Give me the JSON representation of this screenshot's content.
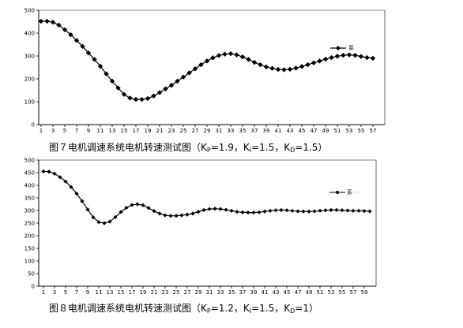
{
  "chart_data": [
    {
      "type": "line",
      "ylim": [
        0,
        500
      ],
      "yticks": [
        0,
        100,
        200,
        300,
        400,
        500
      ],
      "xticks": [
        "1",
        "3",
        "5",
        "7",
        "9",
        "11",
        "13",
        "15",
        "17",
        "19",
        "21",
        "23",
        "25",
        "27",
        "29",
        "31",
        "33",
        "35",
        "37",
        "39",
        "41",
        "43",
        "45",
        "47",
        "49",
        "51",
        "53",
        "55",
        "57"
      ],
      "series": [
        {
          "name": "系",
          "x": [
            1,
            2,
            3,
            4,
            5,
            6,
            7,
            8,
            9,
            10,
            11,
            12,
            13,
            14,
            15,
            16,
            17,
            18,
            19,
            20,
            21,
            22,
            23,
            24,
            25,
            26,
            27,
            28,
            29,
            30,
            31,
            32,
            33,
            34,
            35,
            36,
            37,
            38,
            39,
            40,
            41,
            42,
            43,
            44,
            45,
            46,
            47,
            48,
            49,
            50,
            51,
            52,
            53,
            54,
            55,
            56,
            57
          ],
          "values": [
            452,
            452,
            448,
            435,
            415,
            393,
            368,
            342,
            313,
            285,
            255,
            222,
            190,
            160,
            132,
            116,
            110,
            110,
            114,
            125,
            140,
            156,
            172,
            190,
            208,
            226,
            244,
            262,
            278,
            292,
            302,
            308,
            310,
            305,
            296,
            285,
            272,
            262,
            252,
            246,
            241,
            240,
            242,
            247,
            254,
            262,
            270,
            278,
            286,
            293,
            299,
            303,
            305,
            303,
            298,
            293,
            290
          ]
        }
      ],
      "caption": {
        "pre": "图７电机调速系统电机转速测试图（K",
        "s1": "P",
        "m1": "=1.9，K",
        "s2": "I",
        "m2": "=1.5，K",
        "s3": "D",
        "post": "=1.5）"
      }
    },
    {
      "type": "line",
      "ylim": [
        0,
        500
      ],
      "yticks": [
        0,
        50,
        100,
        150,
        200,
        250,
        300,
        350,
        400,
        450,
        500
      ],
      "xticks": [
        "1",
        "3",
        "5",
        "7",
        "9",
        "11",
        "13",
        "15",
        "17",
        "19",
        "21",
        "23",
        "25",
        "27",
        "29",
        "31",
        "33",
        "35",
        "37",
        "39",
        "41",
        "43",
        "45",
        "47",
        "49",
        "51",
        "53",
        "55",
        "57",
        "59"
      ],
      "series": [
        {
          "name": "系 · ·",
          "x": [
            1,
            2,
            3,
            4,
            5,
            6,
            7,
            8,
            9,
            10,
            11,
            12,
            13,
            14,
            15,
            16,
            17,
            18,
            19,
            20,
            21,
            22,
            23,
            24,
            25,
            26,
            27,
            28,
            29,
            30,
            31,
            32,
            33,
            34,
            35,
            36,
            37,
            38,
            39,
            40,
            41,
            42,
            43,
            44,
            45,
            46,
            47,
            48,
            49,
            50,
            51,
            52,
            53,
            54,
            55,
            56,
            57,
            58,
            59,
            60
          ],
          "values": [
            455,
            454,
            446,
            432,
            415,
            393,
            367,
            337,
            304,
            273,
            254,
            250,
            256,
            274,
            294,
            311,
            322,
            325,
            321,
            310,
            298,
            288,
            281,
            279,
            279,
            281,
            284,
            288,
            295,
            302,
            306,
            307,
            306,
            303,
            299,
            295,
            293,
            292,
            292,
            293,
            296,
            299,
            301,
            302,
            301,
            299,
            297,
            296,
            296,
            297,
            299,
            301,
            302,
            302,
            301,
            300,
            299,
            299,
            298,
            297
          ]
        }
      ],
      "caption": {
        "pre": "图８电机调速系统电机转速测试图（K",
        "s1": "P",
        "m1": "=1.2，K",
        "s2": "I",
        "m2": "=1.5，K",
        "s3": "D",
        "post": "=1）"
      }
    }
  ]
}
